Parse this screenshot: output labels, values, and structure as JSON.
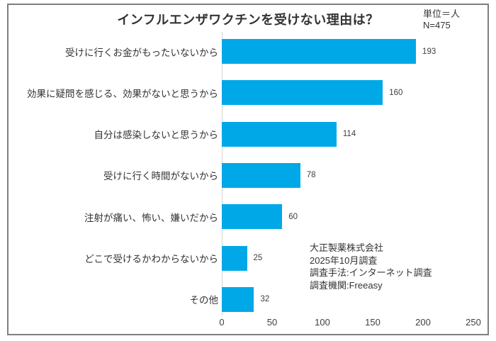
{
  "chart_data": {
    "type": "bar",
    "orientation": "horizontal",
    "title": "インフルエンザワクチンを受けない理由は？",
    "unit_label": "単位＝人",
    "sample_size_label": "N=475",
    "categories": [
      "受けに行くお金がもったいないから",
      "効果に疑問を感じる、効果がないと思うから",
      "自分は感染しないと思うから",
      "受けに行く時間がないから",
      "注射が痛い、怖い、嫌いだから",
      "どこで受けるかわからないから",
      "その他"
    ],
    "values": [
      193,
      160,
      114,
      78,
      60,
      25,
      32
    ],
    "xlabel": "",
    "ylabel": "",
    "xlim": [
      0,
      250
    ],
    "x_ticks": [
      0,
      50,
      100,
      150,
      200,
      250
    ],
    "grid": false,
    "legend": "none",
    "bar_color": "#00a8e8",
    "annotations": [
      "大正製薬株式会社",
      "2025年10月調査",
      "調査手法:インターネット調査",
      "調査機関:Freeasy"
    ]
  },
  "layout_colors": {
    "frame_border": "#7f7f7f",
    "axis_line": "#d6d6d6",
    "text": "#333333"
  }
}
